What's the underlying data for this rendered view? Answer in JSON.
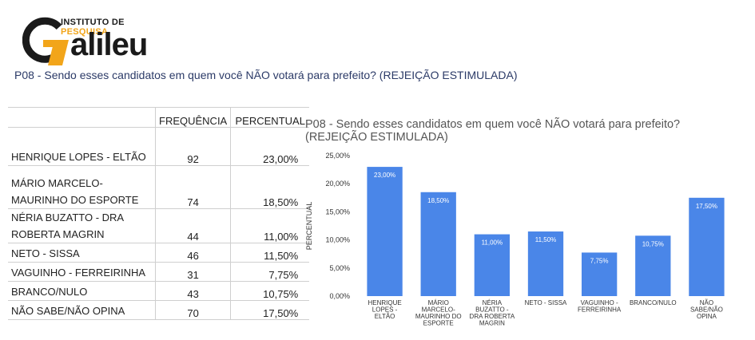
{
  "logo": {
    "line1_a": "INSTITUTO DE ",
    "line1_b": "PESQUISA",
    "name": "alileu"
  },
  "question": "P08 - Sendo esses candidatos em quem você NÃO votará para prefeito? (REJEIÇÃO ESTIMULADA)",
  "table": {
    "headers": [
      "FREQUÊNCIA",
      "PERCENTUAL"
    ],
    "rows": [
      {
        "name_lines": [
          "HENRIQUE LOPES - ELTÃO"
        ],
        "freq": "92",
        "pct": "23,00%"
      },
      {
        "name_lines": [
          "MÁRIO MARCELO-",
          "MAURINHO DO ESPORTE"
        ],
        "freq": "74",
        "pct": "18,50%"
      },
      {
        "name_lines": [
          "NÉRIA BUZATTO - DRA",
          "ROBERTA MAGRIN"
        ],
        "freq": "44",
        "pct": "11,00%"
      },
      {
        "name_lines": [
          "NETO - SISSA"
        ],
        "freq": "46",
        "pct": "11,50%"
      },
      {
        "name_lines": [
          "VAGUINHO - FERREIRINHA"
        ],
        "freq": "31",
        "pct": "7,75%"
      },
      {
        "name_lines": [
          "BRANCO/NULO"
        ],
        "freq": "43",
        "pct": "10,75%"
      },
      {
        "name_lines": [
          "NÃO SABE/NÃO OPINA"
        ],
        "freq": "70",
        "pct": "17,50%"
      }
    ]
  },
  "chart_data": {
    "type": "bar",
    "title": "P08 - Sendo esses candidatos em quem você NÃO votará para prefeito? (REJEIÇÃO ESTIMULADA)",
    "ylabel": "PERCENTUAL",
    "xlabel": "",
    "ylim": [
      0,
      25
    ],
    "yticks": [
      "0,00%",
      "5,00%",
      "10,00%",
      "15,00%",
      "20,00%",
      "25,00%"
    ],
    "bar_color": "#4a86e8",
    "categories": [
      [
        "HENRIQUE",
        "LOPES -",
        "ELTÃO"
      ],
      [
        "MÁRIO",
        "MARCELO-",
        "MAURINHO DO",
        "ESPORTE"
      ],
      [
        "NÉRIA",
        "BUZATTO -",
        "DRA ROBERTA",
        "MAGRIN"
      ],
      [
        "NETO - SISSA"
      ],
      [
        "VAGUINHO -",
        "FERREIRINHA"
      ],
      [
        "BRANCO/NULO"
      ],
      [
        "NÃO",
        "SABE/NÃO",
        "OPINA"
      ]
    ],
    "values": [
      23.0,
      18.5,
      11.0,
      11.5,
      7.75,
      10.75,
      17.5
    ],
    "data_labels": [
      "23,00%",
      "18,50%",
      "11,00%",
      "11,50%",
      "7,75%",
      "10,75%",
      "17,50%"
    ]
  }
}
